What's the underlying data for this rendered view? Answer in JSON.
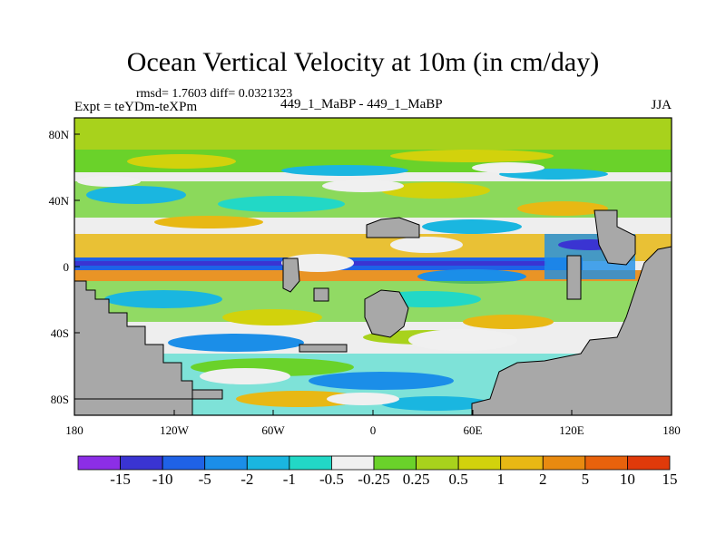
{
  "title": "Ocean Vertical Velocity at 10m (in cm/day)",
  "stats_line": "rmsd= 1.7603 diff= 0.0321323",
  "experiment_label": "Expt = teYDm-teXPm",
  "experiments": "449_1_MaBP - 449_1_MaBP",
  "season": "JJA",
  "lat_ticks": [
    "80N",
    "40N",
    "0",
    "40S",
    "80S"
  ],
  "lon_ticks": [
    "180",
    "120W",
    "60W",
    "0",
    "60E",
    "120E",
    "180"
  ],
  "colorbar": {
    "labels": [
      "-15",
      "-10",
      "-5",
      "-2",
      "-1",
      "-0.5",
      "-0.25",
      "0.25",
      "0.5",
      "1",
      "2",
      "5",
      "10",
      "15"
    ],
    "colors": [
      "#8c2ee6",
      "#3a34d2",
      "#1f62e6",
      "#1b8ee8",
      "#1ab6e0",
      "#22d8c6",
      "#f0f0f0",
      "#6ad22a",
      "#a8d21c",
      "#d2d20c",
      "#e8b814",
      "#e88a10",
      "#e8620c",
      "#e03a0a"
    ]
  },
  "land_color": "#a8a8a8"
}
